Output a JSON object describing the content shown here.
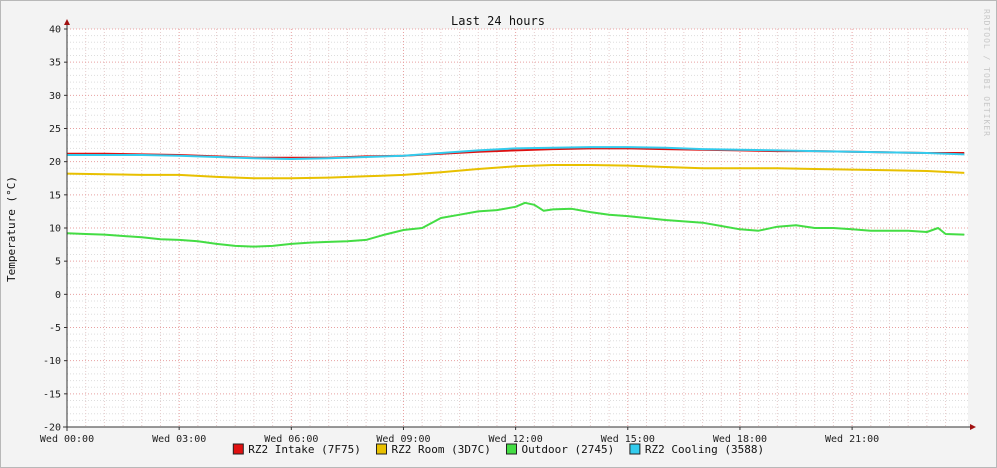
{
  "chart_data": {
    "type": "line",
    "title": "Last 24 hours",
    "ylabel": "Temperature (°C)",
    "xlabel": "",
    "watermark": "RRDTOOL / TOBI OETIKER",
    "ylim": [
      -20,
      40
    ],
    "yticks": [
      40,
      35,
      30,
      25,
      20,
      15,
      10,
      5,
      0,
      -5,
      -10,
      -15,
      -20
    ],
    "x_unit": "hours since Wed 00:00",
    "xlim": [
      0,
      24.1
    ],
    "xticks": [
      {
        "x": 0,
        "label": "Wed 00:00"
      },
      {
        "x": 3,
        "label": "Wed 03:00"
      },
      {
        "x": 6,
        "label": "Wed 06:00"
      },
      {
        "x": 9,
        "label": "Wed 09:00"
      },
      {
        "x": 12,
        "label": "Wed 12:00"
      },
      {
        "x": 15,
        "label": "Wed 15:00"
      },
      {
        "x": 18,
        "label": "Wed 18:00"
      },
      {
        "x": 21,
        "label": "Wed 21:00"
      }
    ],
    "grid": true,
    "legend": "bottom",
    "series": [
      {
        "name": "RZ2 Intake (7F75)",
        "color": "#e01010",
        "x": [
          0,
          1,
          2,
          3,
          4,
          5,
          6,
          7,
          8,
          9,
          10,
          11,
          12,
          13,
          14,
          15,
          16,
          17,
          18,
          19,
          20,
          21,
          22,
          23,
          24
        ],
        "values": [
          21.2,
          21.2,
          21.1,
          21.0,
          20.8,
          20.6,
          20.6,
          20.6,
          20.8,
          20.9,
          21.2,
          21.5,
          21.7,
          21.9,
          22.0,
          22.0,
          21.9,
          21.8,
          21.7,
          21.6,
          21.6,
          21.5,
          21.4,
          21.3,
          21.3
        ]
      },
      {
        "name": "RZ2 Room (3D7C)",
        "color": "#e8c000",
        "x": [
          0,
          1,
          2,
          3,
          4,
          5,
          6,
          7,
          8,
          9,
          10,
          11,
          12,
          13,
          14,
          15,
          16,
          17,
          18,
          19,
          20,
          21,
          22,
          23,
          24
        ],
        "values": [
          18.2,
          18.1,
          18.0,
          18.0,
          17.7,
          17.5,
          17.5,
          17.6,
          17.8,
          18.0,
          18.4,
          18.9,
          19.3,
          19.5,
          19.5,
          19.4,
          19.2,
          19.0,
          19.0,
          19.0,
          18.9,
          18.8,
          18.7,
          18.6,
          18.3
        ]
      },
      {
        "name": "Outdoor (2745)",
        "color": "#44dd44",
        "x": [
          0,
          0.5,
          1,
          1.5,
          2,
          2.5,
          3,
          3.5,
          4,
          4.5,
          5,
          5.5,
          6,
          6.5,
          7,
          7.5,
          8,
          8.5,
          9,
          9.5,
          10,
          10.5,
          11,
          11.5,
          12,
          12.25,
          12.5,
          12.75,
          13,
          13.5,
          14,
          14.5,
          15,
          15.5,
          16,
          16.5,
          17,
          17.5,
          18,
          18.5,
          19,
          19.5,
          20,
          20.5,
          21,
          21.5,
          22,
          22.5,
          23,
          23.3,
          23.5,
          24
        ],
        "values": [
          9.2,
          9.1,
          9.0,
          8.8,
          8.6,
          8.3,
          8.2,
          8.0,
          7.6,
          7.3,
          7.2,
          7.3,
          7.6,
          7.8,
          7.9,
          8.0,
          8.2,
          9.0,
          9.7,
          10.0,
          11.5,
          12.0,
          12.5,
          12.7,
          13.2,
          13.8,
          13.5,
          12.6,
          12.8,
          12.9,
          12.4,
          12.0,
          11.8,
          11.5,
          11.2,
          11.0,
          10.8,
          10.3,
          9.8,
          9.6,
          10.2,
          10.4,
          10.0,
          10.0,
          9.8,
          9.6,
          9.6,
          9.6,
          9.4,
          10.0,
          9.1,
          9.0
        ]
      },
      {
        "name": "RZ2 Cooling (3588)",
        "color": "#33ccee",
        "x": [
          0,
          1,
          2,
          3,
          4,
          5,
          6,
          7,
          8,
          9,
          10,
          11,
          12,
          13,
          14,
          15,
          16,
          17,
          18,
          19,
          20,
          21,
          22,
          23,
          24
        ],
        "values": [
          21.0,
          21.0,
          21.0,
          20.9,
          20.7,
          20.5,
          20.4,
          20.5,
          20.7,
          20.9,
          21.3,
          21.7,
          22.0,
          22.1,
          22.2,
          22.2,
          22.1,
          21.9,
          21.8,
          21.7,
          21.6,
          21.5,
          21.4,
          21.3,
          21.1
        ]
      }
    ]
  }
}
